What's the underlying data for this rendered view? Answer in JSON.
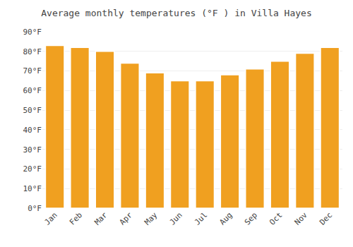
{
  "chart_data": {
    "type": "bar",
    "title": "Average monthly temperatures (°F ) in Villa Hayes",
    "categories": [
      "Jan",
      "Feb",
      "Mar",
      "Apr",
      "May",
      "Jun",
      "Jul",
      "Aug",
      "Sep",
      "Oct",
      "Nov",
      "Dec"
    ],
    "values": [
      83,
      82,
      80,
      74,
      69,
      65,
      65,
      68,
      71,
      75,
      79,
      82
    ],
    "color": "#F0A020",
    "ylim": [
      0,
      90
    ],
    "yticks": [
      {
        "value": 0,
        "label": "0°F"
      },
      {
        "value": 10,
        "label": "10°F"
      },
      {
        "value": 20,
        "label": "20°F"
      },
      {
        "value": 30,
        "label": "30°F"
      },
      {
        "value": 40,
        "label": "40°F"
      },
      {
        "value": 50,
        "label": "50°F"
      },
      {
        "value": 60,
        "label": "60°F"
      },
      {
        "value": 70,
        "label": "70°F"
      },
      {
        "value": 80,
        "label": "80°F"
      },
      {
        "value": 90,
        "label": "90°F"
      }
    ],
    "grid": true
  }
}
